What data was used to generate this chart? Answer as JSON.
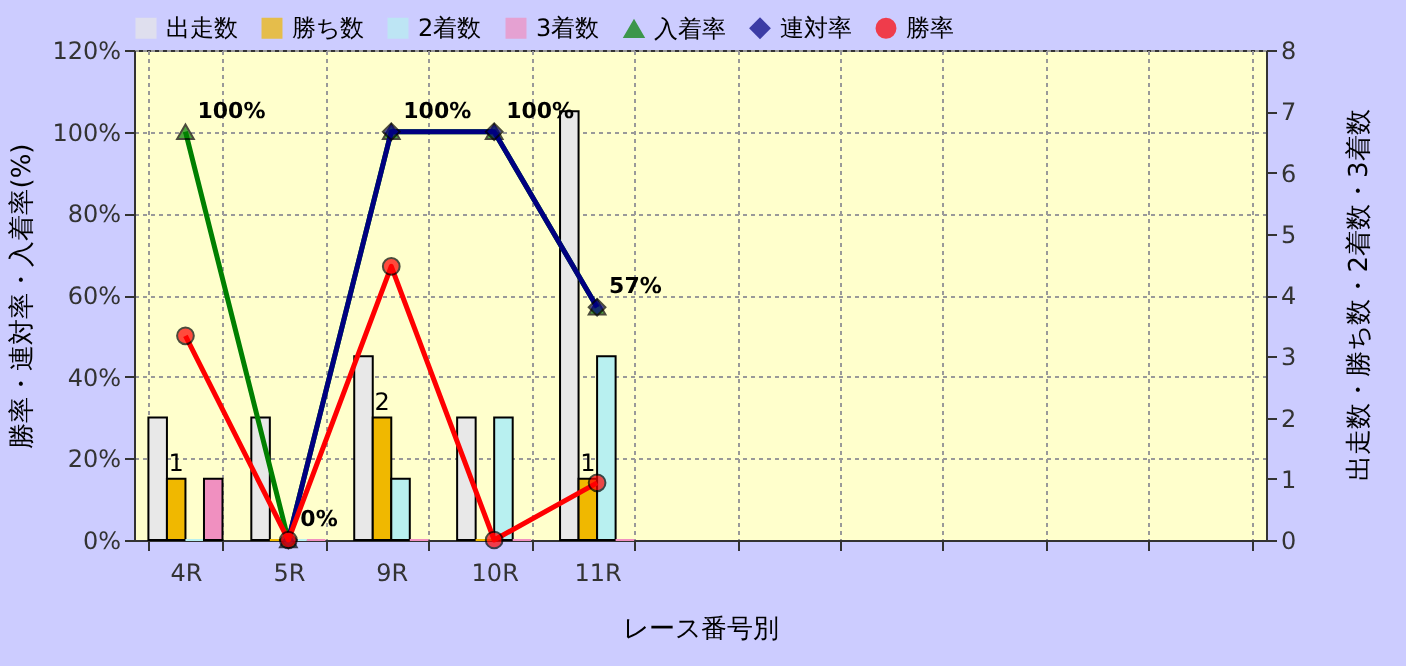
{
  "chart_data": {
    "type": "bar",
    "categories": [
      "4R",
      "5R",
      "9R",
      "10R",
      "11R",
      null,
      null,
      null,
      null,
      null,
      null
    ],
    "xlabel": "レース番号別",
    "ylabel": "勝率・連対率・入着率(%)",
    "y2label": "出走数・勝ち数・2着数・3着数",
    "ylim": [
      0,
      120
    ],
    "yticks": [
      {
        "value": 0,
        "label": "0%"
      },
      {
        "value": 20,
        "label": "20%"
      },
      {
        "value": 40,
        "label": "40%"
      },
      {
        "value": 60,
        "label": "60%"
      },
      {
        "value": 80,
        "label": "80%"
      },
      {
        "value": 100,
        "label": "100%"
      },
      {
        "value": 120,
        "label": "120%"
      }
    ],
    "y2lim": [
      0,
      8
    ],
    "y2ticks": [
      0,
      1,
      2,
      3,
      4,
      5,
      6,
      7,
      8
    ],
    "grid": true,
    "legend": "top",
    "line_style": "solid",
    "series": [
      {
        "name": "出走数",
        "axis": "y2",
        "color": "#e8e8e8",
        "values": [
          2,
          2,
          3,
          2,
          7,
          null,
          null,
          null,
          null,
          null,
          null
        ]
      },
      {
        "name": "勝ち数",
        "axis": "y2",
        "color": "#f0b800",
        "values": [
          1,
          0,
          2,
          0,
          1,
          null,
          null,
          null,
          null,
          null,
          null
        ],
        "value_labels": [
          "1",
          null,
          "2",
          null,
          "1",
          null,
          null,
          null,
          null,
          null,
          null
        ]
      },
      {
        "name": "2着数",
        "axis": "y2",
        "color": "#b8f0f0",
        "values": [
          0,
          0,
          1,
          2,
          3,
          null,
          null,
          null,
          null,
          null,
          null
        ]
      },
      {
        "name": "3着数",
        "axis": "y2",
        "color": "#f090c0",
        "values": [
          1,
          0,
          0,
          0,
          0,
          null,
          null,
          null,
          null,
          null,
          null
        ]
      },
      {
        "name": "入着率",
        "type": "line",
        "marker": "triangle",
        "color": "#008000",
        "values": [
          100,
          0,
          100,
          100,
          57,
          null,
          null,
          null,
          null,
          null,
          null
        ],
        "value_labels": [
          "100%",
          "0%",
          "100%",
          "100%",
          "57%",
          null,
          null,
          null,
          null,
          null,
          null
        ]
      },
      {
        "name": "連対率",
        "type": "line",
        "marker": "diamond",
        "color": "#000080",
        "values": [
          null,
          0,
          100,
          100,
          57,
          null,
          null,
          null,
          null,
          null,
          null
        ]
      },
      {
        "name": "勝率",
        "type": "line",
        "marker": "circle",
        "color": "#ff0000",
        "values": [
          50,
          0,
          67,
          0,
          14,
          null,
          null,
          null,
          null,
          null,
          null
        ]
      }
    ]
  }
}
